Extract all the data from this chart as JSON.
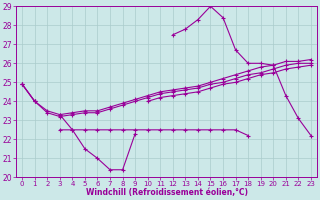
{
  "xlabel": "Windchill (Refroidissement éolien,°C)",
  "hours": [
    0,
    1,
    2,
    3,
    4,
    5,
    6,
    7,
    8,
    9,
    10,
    11,
    12,
    13,
    14,
    15,
    16,
    17,
    18,
    19,
    20,
    21,
    22,
    23
  ],
  "curve_main": [
    24.9,
    24.0,
    null,
    23.3,
    22.5,
    21.5,
    21.0,
    20.4,
    20.4,
    22.3,
    null,
    null,
    27.5,
    27.8,
    28.3,
    29.0,
    28.4,
    26.7,
    26.0,
    26.0,
    25.9,
    24.3,
    23.1,
    22.2
  ],
  "curve_flat": [
    null,
    null,
    null,
    22.5,
    22.5,
    22.5,
    22.5,
    22.5,
    22.5,
    22.5,
    22.5,
    22.5,
    22.5,
    22.5,
    22.5,
    22.5,
    22.5,
    22.5,
    22.2,
    null,
    null,
    null,
    null,
    null
  ],
  "curve_slow1": [
    24.9,
    24.0,
    23.5,
    23.3,
    23.4,
    23.5,
    23.5,
    23.7,
    23.9,
    24.1,
    24.3,
    24.5,
    24.6,
    24.7,
    24.8,
    25.0,
    25.2,
    25.4,
    25.6,
    25.8,
    25.9,
    26.1,
    26.1,
    26.2
  ],
  "curve_slow2": [
    24.9,
    24.0,
    23.4,
    23.2,
    23.3,
    23.4,
    23.4,
    23.6,
    23.8,
    24.0,
    24.2,
    24.4,
    24.5,
    24.6,
    24.7,
    24.9,
    25.0,
    25.2,
    25.4,
    25.5,
    25.7,
    25.9,
    26.0,
    26.0
  ],
  "curve_slow3": [
    null,
    null,
    null,
    null,
    null,
    null,
    null,
    null,
    null,
    null,
    24.0,
    24.2,
    24.3,
    24.4,
    24.5,
    24.7,
    24.9,
    25.0,
    25.2,
    25.4,
    25.5,
    25.7,
    25.8,
    25.9
  ],
  "ylim": [
    20,
    29
  ],
  "xlim": [
    -0.5,
    23.5
  ],
  "color": "#990099",
  "bg_color": "#cce8e8",
  "grid_color": "#aacccc"
}
